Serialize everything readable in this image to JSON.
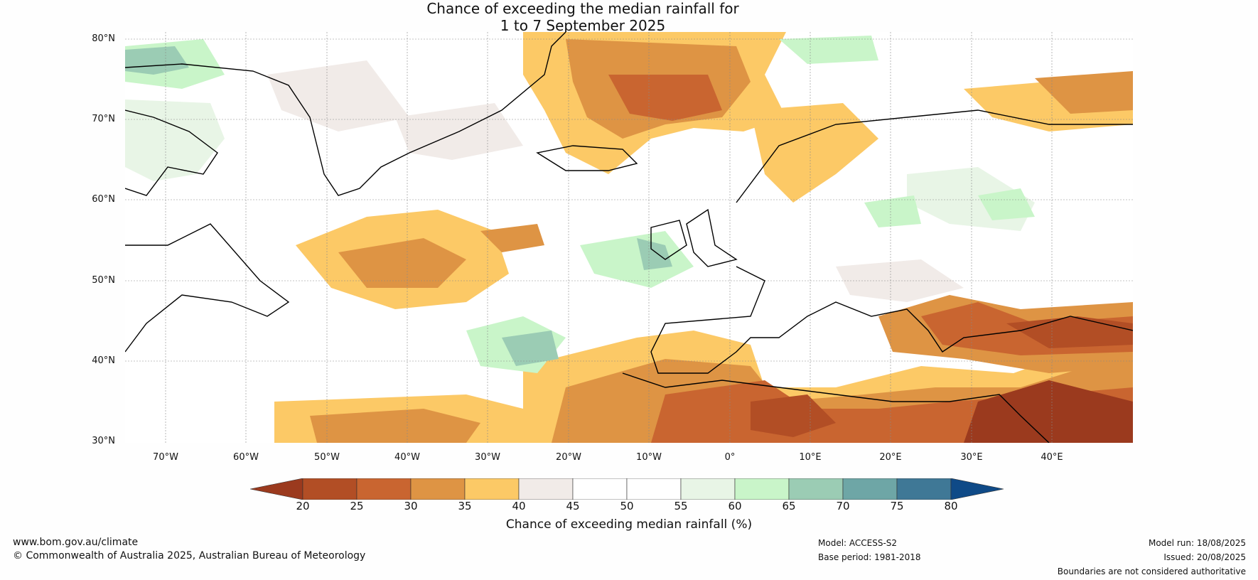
{
  "title": {
    "line1": "Chance of exceeding the median rainfall for",
    "line2": "1 to 7 September 2025"
  },
  "map": {
    "lat_labels": [
      "80°N",
      "70°N",
      "60°N",
      "50°N",
      "40°N",
      "30°N"
    ],
    "lon_labels": [
      "70°W",
      "60°W",
      "50°W",
      "40°W",
      "30°W",
      "20°W",
      "10°W",
      "0°",
      "10°E",
      "20°E",
      "30°E",
      "40°E"
    ],
    "extent": {
      "lon": [
        -75,
        50
      ],
      "lat": [
        30,
        81
      ]
    }
  },
  "colorbar": {
    "ticks": [
      "20",
      "25",
      "30",
      "35",
      "40",
      "45",
      "50",
      "55",
      "60",
      "65",
      "70",
      "75",
      "80"
    ],
    "colors": [
      "#9b3a1e",
      "#b24e25",
      "#c96530",
      "#de9444",
      "#fcc966",
      "#f1ebe8",
      "#ffffff",
      "#ffffff",
      "#e8f5e6",
      "#c9f5c9",
      "#9bccb4",
      "#6ea6a6",
      "#3f7896",
      "#0f4a87"
    ],
    "label": "Chance of exceeding median rainfall (%)"
  },
  "footer": {
    "website": "www.bom.gov.au/climate",
    "copyright": "© Commonwealth of Australia 2025, Australian Bureau of Meteorology",
    "model": "Model: ACCESS-S2",
    "base_period": "Base period: 1981-2018",
    "model_run": "Model run: 18/08/2025",
    "issued": "Issued: 20/08/2025",
    "disclaimer": "Boundaries are not considered authoritative"
  }
}
